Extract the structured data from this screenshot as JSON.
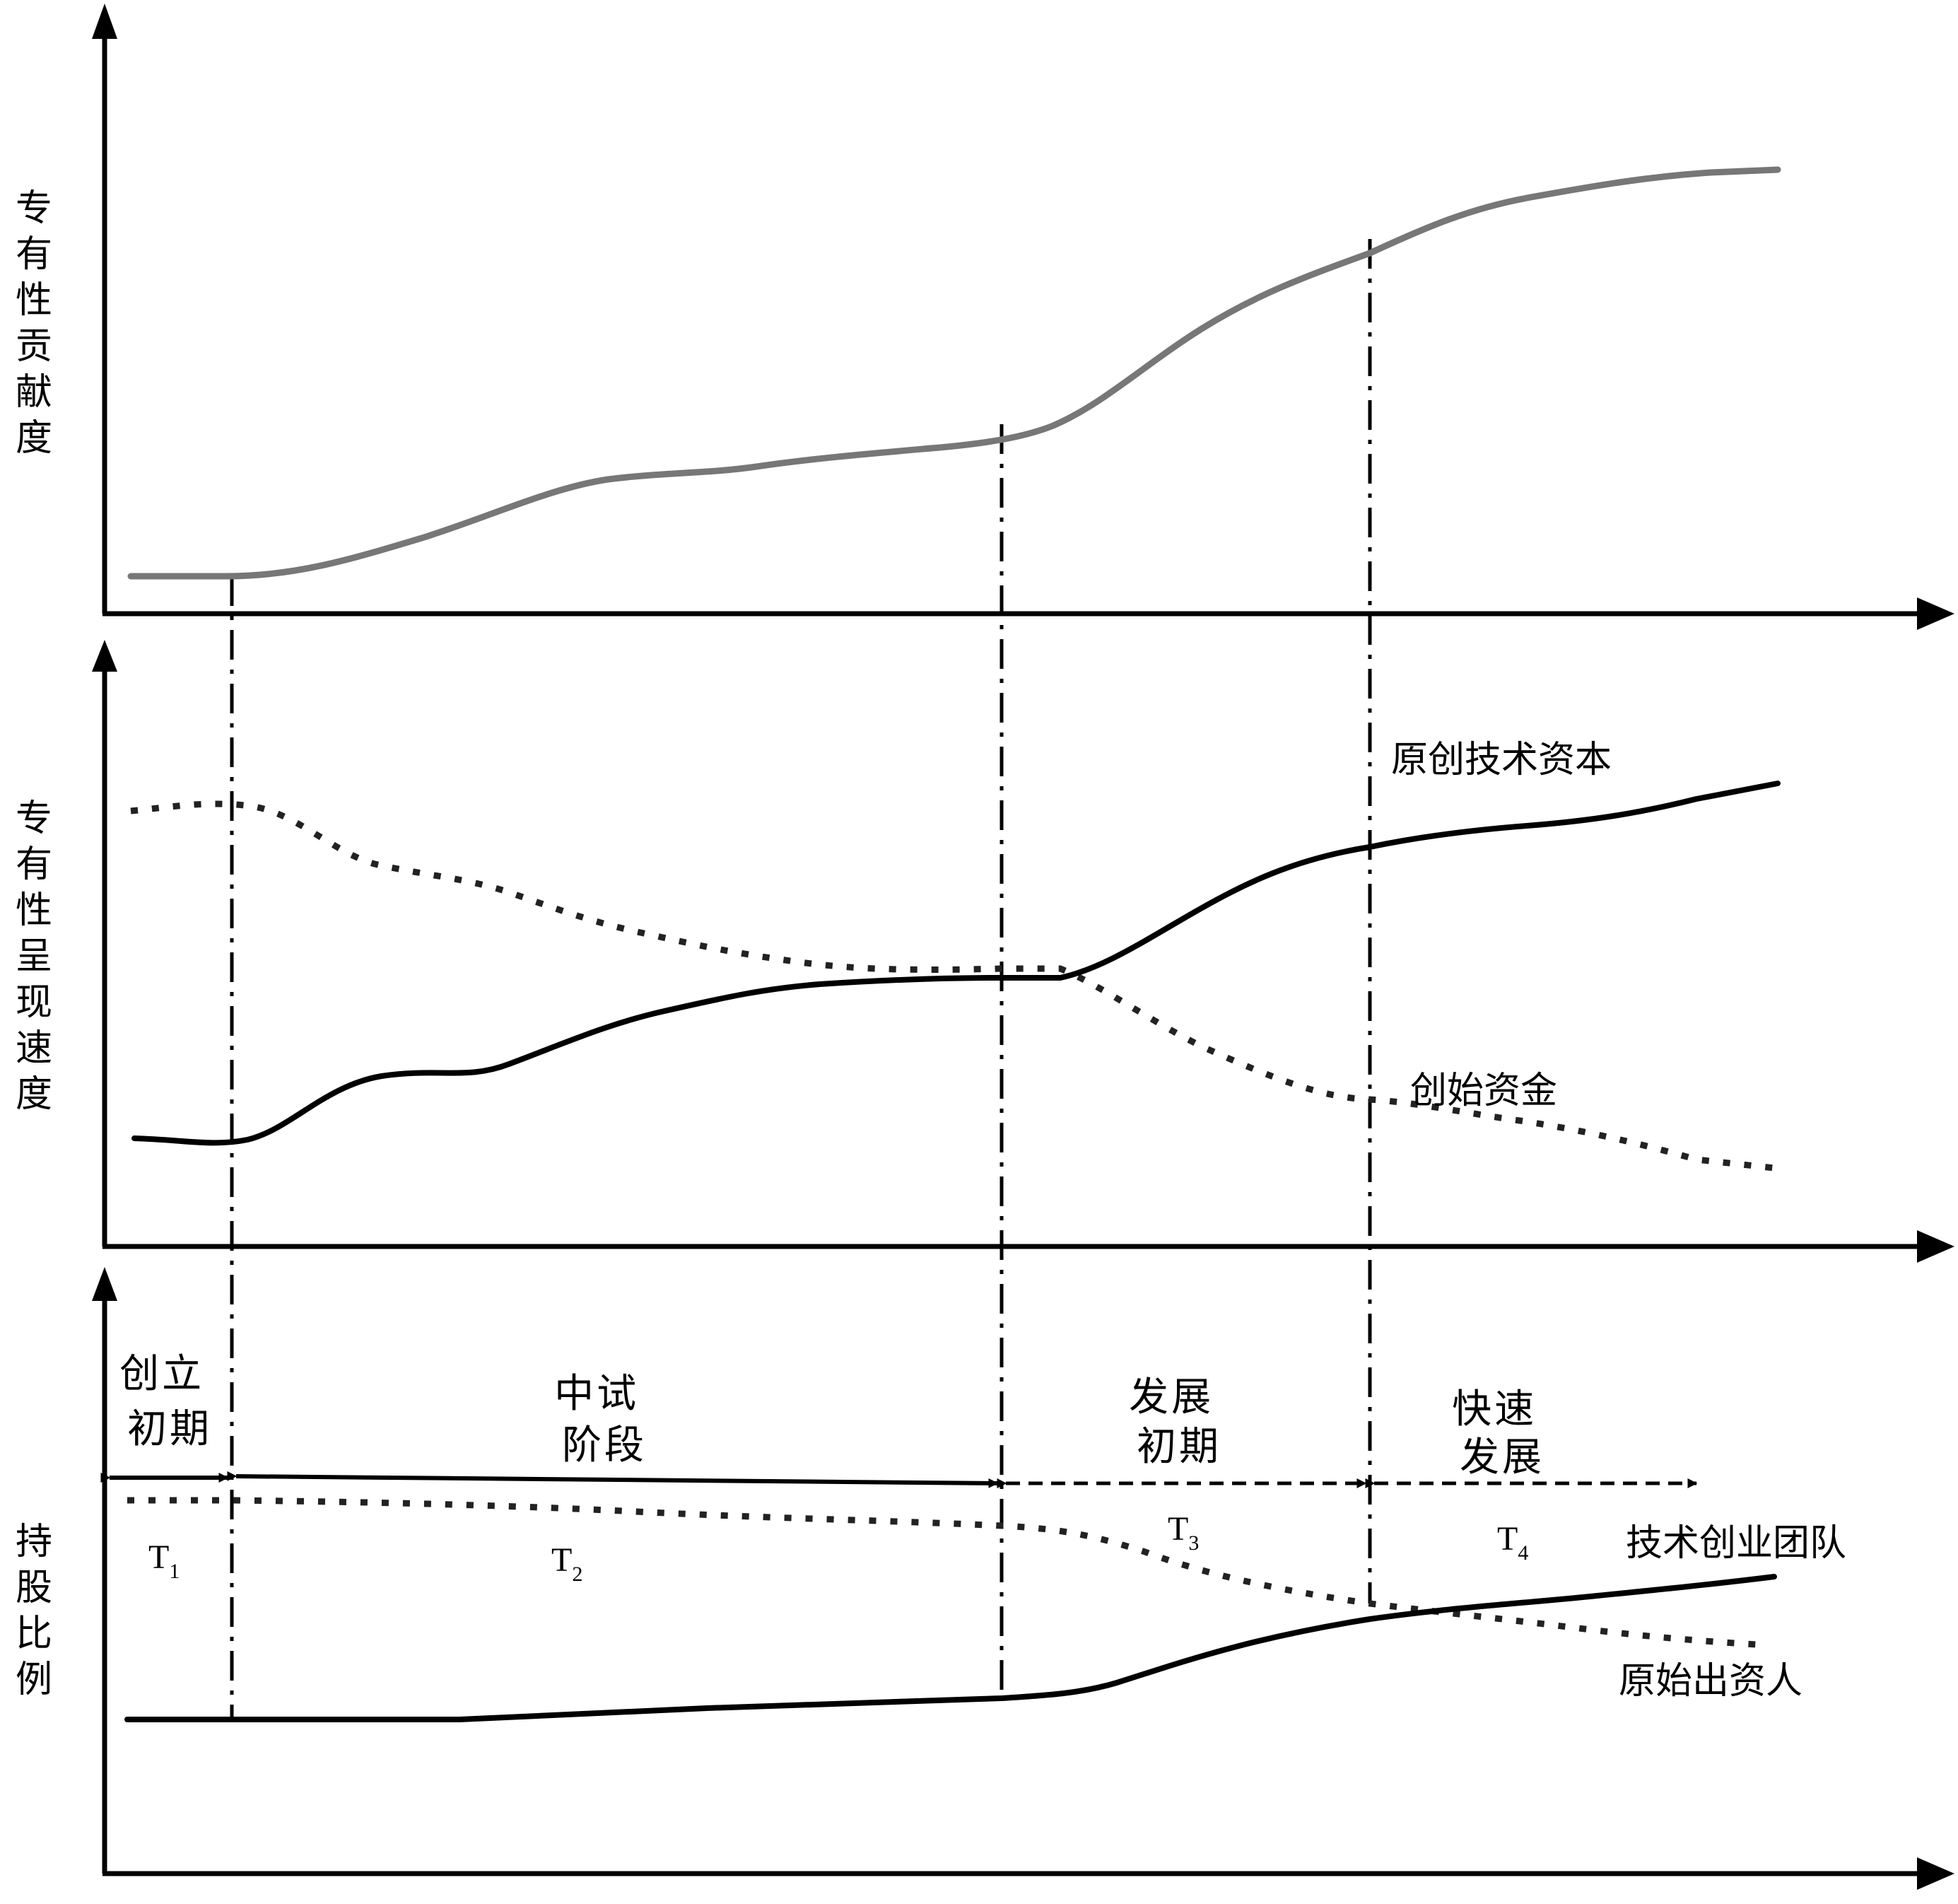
{
  "y_axis_labels": {
    "top": [
      "专",
      "有",
      "性",
      "贡",
      "献",
      "度"
    ],
    "middle": [
      "专",
      "有",
      "性",
      "呈",
      "现",
      "速",
      "度"
    ],
    "bottom": [
      "持",
      "股",
      "比",
      "例"
    ]
  },
  "series_labels": {
    "tech_capital": "原创技术资本",
    "founding_funds": "创始资金",
    "tech_team": "技术创业团队",
    "original_investor": "原始出资人"
  },
  "stages": [
    {
      "lines": [
        "创立",
        "初期"
      ],
      "t_main": "T",
      "t_sub": "1"
    },
    {
      "lines": [
        "中试",
        "阶段"
      ],
      "t_main": "T",
      "t_sub": "2"
    },
    {
      "lines": [
        "发展",
        "初期"
      ],
      "t_main": "T",
      "t_sub": "3"
    },
    {
      "lines": [
        "快速",
        "发展"
      ],
      "t_main": "T",
      "t_sub": "4"
    }
  ],
  "colors": {
    "line": "#000000",
    "gray_curve": "#777777",
    "background": "#ffffff"
  }
}
